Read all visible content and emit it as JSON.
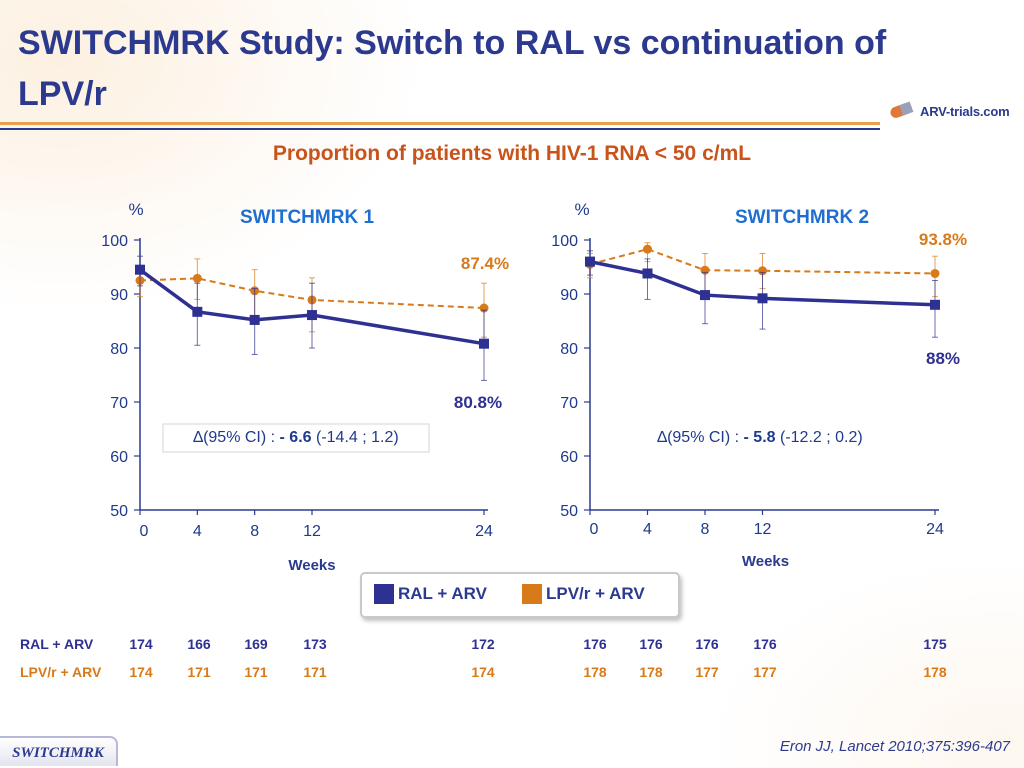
{
  "title": "SWITCHMRK Study: Switch to RAL vs continuation of LPV/r",
  "logo": {
    "text": "ARV-trials.com"
  },
  "subtitle": "Proportion of patients with HIV-1 RNA < 50 c/mL",
  "colors": {
    "ral": "#2e3192",
    "lpv": "#d97a1a",
    "title": "#2b3a8f",
    "subtitle": "#c8531b"
  },
  "chart_data": [
    {
      "type": "line",
      "title": "SWITCHMRK 1",
      "ylabel": "%",
      "xlabel": "Weeks",
      "ylim": [
        50,
        100
      ],
      "yticks": [
        50,
        60,
        70,
        80,
        90,
        100
      ],
      "x": [
        0,
        4,
        8,
        12,
        24
      ],
      "series": [
        {
          "name": "RAL + ARV",
          "values": [
            94.5,
            86.7,
            85.2,
            86.1,
            80.8
          ],
          "err_low": [
            91.5,
            80.5,
            78.8,
            80.0,
            74.0
          ],
          "err_high": [
            97.0,
            92.0,
            91.0,
            92.0,
            87.0
          ]
        },
        {
          "name": "LPV/r + ARV",
          "values": [
            92.5,
            92.9,
            90.6,
            88.9,
            87.4
          ],
          "err_low": [
            89.5,
            89.0,
            86.0,
            83.0,
            82.0
          ],
          "err_high": [
            95.0,
            96.5,
            94.5,
            93.0,
            92.0
          ]
        }
      ],
      "annotations": {
        "ral_final": "80.8%",
        "lpv_final": "87.4%"
      },
      "ci_text": {
        "prefix": "∆(95% CI) : ",
        "value": "- 6.6",
        "range": " (-14.4 ; 1.2)"
      }
    },
    {
      "type": "line",
      "title": "SWITCHMRK 2",
      "ylabel": "%",
      "xlabel": "Weeks",
      "ylim": [
        50,
        100
      ],
      "yticks": [
        50,
        60,
        70,
        80,
        90,
        100
      ],
      "x": [
        0,
        4,
        8,
        12,
        24
      ],
      "series": [
        {
          "name": "RAL + ARV",
          "values": [
            96.0,
            93.8,
            89.8,
            89.2,
            88.0
          ],
          "err_low": [
            93.5,
            89.0,
            84.5,
            83.5,
            82.0
          ],
          "err_high": [
            98.0,
            96.5,
            94.0,
            94.0,
            92.5
          ]
        },
        {
          "name": "LPV/r + ARV",
          "values": [
            95.5,
            98.3,
            94.4,
            94.3,
            93.8
          ],
          "err_low": [
            93.0,
            96.0,
            90.5,
            91.0,
            89.5
          ],
          "err_high": [
            97.5,
            99.5,
            97.5,
            97.5,
            97.0
          ]
        }
      ],
      "annotations": {
        "lpv_final": "93.8%",
        "ral_final": "88%"
      },
      "ci_text": {
        "prefix": "∆(95% CI) : ",
        "value": "- 5.8",
        "range": " (-12.2 ; 0.2)"
      }
    }
  ],
  "legend": [
    {
      "label": "RAL + ARV",
      "color": "#2e3192"
    },
    {
      "label": "LPV/r + ARV",
      "color": "#d97a1a"
    }
  ],
  "n_table": {
    "rows": [
      {
        "label": "RAL + ARV",
        "color": "#2e3192",
        "study1": [
          "174",
          "166",
          "169",
          "173",
          "172"
        ],
        "study2": [
          "176",
          "176",
          "176",
          "176",
          "175"
        ]
      },
      {
        "label": "LPV/r + ARV",
        "color": "#d97a1a",
        "study1": [
          "174",
          "171",
          "171",
          "171",
          "174"
        ],
        "study2": [
          "178",
          "178",
          "177",
          "177",
          "178"
        ]
      }
    ]
  },
  "footer": {
    "tab": "SWITCHMRK",
    "citation": "Eron JJ, Lancet 2010;375:396-407"
  }
}
